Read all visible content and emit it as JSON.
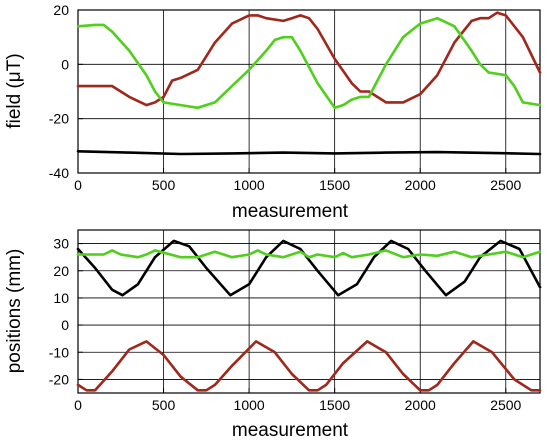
{
  "chart_data": [
    {
      "type": "line",
      "xlabel": "measurement",
      "ylabel": "field (μT)",
      "xlim": [
        0,
        2700
      ],
      "ylim": [
        -40,
        20
      ],
      "xticks": [
        0,
        500,
        1000,
        1500,
        2000,
        2500
      ],
      "yticks": [
        -40,
        -20,
        0,
        20
      ],
      "grid": true,
      "series": [
        {
          "color": "#a0281a",
          "x": [
            0,
            100,
            200,
            300,
            400,
            450,
            500,
            550,
            600,
            700,
            800,
            900,
            1000,
            1050,
            1100,
            1200,
            1250,
            1300,
            1350,
            1400,
            1500,
            1600,
            1650,
            1700,
            1800,
            1900,
            2000,
            2100,
            2200,
            2300,
            2350,
            2400,
            2450,
            2500,
            2600,
            2700
          ],
          "y": [
            -8,
            -8,
            -8,
            -12,
            -15,
            -14,
            -12,
            -6,
            -5,
            -2,
            8,
            15,
            18,
            18,
            17,
            16,
            17,
            18,
            17,
            13,
            2,
            -7,
            -10,
            -10,
            -14,
            -14,
            -11,
            -4,
            8,
            16,
            17,
            17,
            19,
            18,
            10,
            -3
          ]
        },
        {
          "color": "#4fd11c",
          "x": [
            0,
            100,
            150,
            200,
            300,
            400,
            450,
            500,
            600,
            700,
            800,
            900,
            1000,
            1100,
            1150,
            1200,
            1250,
            1300,
            1400,
            1500,
            1550,
            1600,
            1650,
            1700,
            1800,
            1900,
            2000,
            2100,
            2200,
            2300,
            2350,
            2400,
            2500,
            2550,
            2600,
            2700
          ],
          "y": [
            14,
            14.5,
            14.5,
            12,
            5,
            -4,
            -10,
            -14,
            -15,
            -16,
            -14,
            -8,
            -2,
            5,
            9,
            10,
            10,
            5,
            -7,
            -16,
            -15,
            -13,
            -12,
            -12,
            0,
            10,
            15,
            17,
            14,
            5,
            0,
            -3,
            -4,
            -8,
            -14,
            -15
          ]
        },
        {
          "color": "#000000",
          "x": [
            0,
            300,
            600,
            900,
            1200,
            1500,
            1800,
            2100,
            2400,
            2700
          ],
          "y": [
            -32,
            -32.5,
            -33,
            -32.8,
            -32.5,
            -32.8,
            -32.5,
            -32.3,
            -32.6,
            -33
          ]
        }
      ]
    },
    {
      "type": "line",
      "xlabel": "measurement",
      "ylabel": "positions (mm)",
      "xlim": [
        0,
        2700
      ],
      "ylim": [
        -25,
        35
      ],
      "xticks": [
        0,
        500,
        1000,
        1500,
        2000,
        2500
      ],
      "yticks": [
        -20,
        -10,
        0,
        10,
        20,
        30
      ],
      "grid": true,
      "series": [
        {
          "color": "#000000",
          "x": [
            0,
            100,
            200,
            260,
            350,
            450,
            560,
            650,
            750,
            890,
            1000,
            1100,
            1200,
            1300,
            1400,
            1520,
            1630,
            1730,
            1830,
            1930,
            2030,
            2150,
            2260,
            2350,
            2470,
            2580,
            2700
          ],
          "y": [
            28,
            21,
            13,
            11,
            15,
            25,
            31,
            29,
            21,
            11,
            15,
            25,
            31,
            28,
            20,
            11,
            15,
            25,
            31,
            28,
            20,
            11,
            16,
            25,
            31,
            28,
            14
          ]
        },
        {
          "color": "#4fd11c",
          "x": [
            0,
            150,
            200,
            250,
            350,
            400,
            450,
            600,
            700,
            800,
            900,
            1000,
            1050,
            1100,
            1200,
            1300,
            1350,
            1400,
            1500,
            1550,
            1600,
            1700,
            1800,
            1900,
            2000,
            2100,
            2200,
            2300,
            2400,
            2500,
            2600,
            2700
          ],
          "y": [
            26,
            26,
            27.5,
            26,
            25,
            26,
            27.5,
            25,
            25,
            27,
            25,
            26,
            27.5,
            26,
            25,
            27,
            25,
            26,
            25,
            26.5,
            25,
            26,
            27.5,
            25,
            26,
            25.5,
            27,
            25,
            26,
            27,
            25,
            27
          ]
        },
        {
          "color": "#a0281a",
          "x": [
            0,
            50,
            100,
            200,
            300,
            400,
            500,
            600,
            700,
            750,
            800,
            900,
            1040,
            1150,
            1250,
            1350,
            1400,
            1450,
            1550,
            1690,
            1800,
            1900,
            2000,
            2050,
            2100,
            2200,
            2310,
            2420,
            2550,
            2650,
            2700
          ],
          "y": [
            -22,
            -24,
            -24,
            -17,
            -9,
            -6,
            -11,
            -19,
            -24,
            -24,
            -22,
            -15,
            -6,
            -10,
            -18,
            -24,
            -24,
            -22,
            -14,
            -6,
            -10,
            -18,
            -24,
            -24,
            -22,
            -14,
            -6,
            -10,
            -20,
            -24,
            -24
          ]
        }
      ]
    }
  ]
}
